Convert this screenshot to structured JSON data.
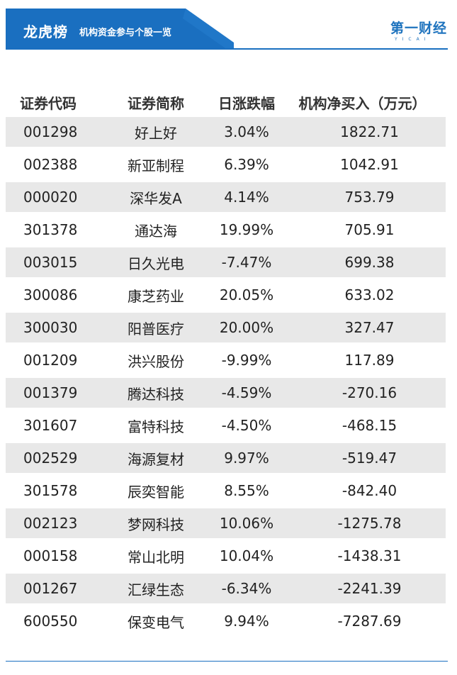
{
  "header": {
    "title": "龙虎榜",
    "subtitle": "机构资金参与个股一览",
    "logo_text": "第一财经",
    "logo_sub": "YICAI",
    "brand_color": "#1a6fc0"
  },
  "table": {
    "columns": [
      "证券代码",
      "证券简称",
      "日涨跌幅",
      "机构净买入（万元）"
    ],
    "rows": [
      {
        "code": "001298",
        "name": "好上好",
        "change": "3.04%",
        "net_buy": "1822.71"
      },
      {
        "code": "002388",
        "name": "新亚制程",
        "change": "6.39%",
        "net_buy": "1042.91"
      },
      {
        "code": "000020",
        "name": "深华发A",
        "change": "4.14%",
        "net_buy": "753.79"
      },
      {
        "code": "301378",
        "name": "通达海",
        "change": "19.99%",
        "net_buy": "705.91"
      },
      {
        "code": "003015",
        "name": "日久光电",
        "change": "-7.47%",
        "net_buy": "699.38"
      },
      {
        "code": "300086",
        "name": "康芝药业",
        "change": "20.05%",
        "net_buy": "633.02"
      },
      {
        "code": "300030",
        "name": "阳普医疗",
        "change": "20.00%",
        "net_buy": "327.47"
      },
      {
        "code": "001209",
        "name": "洪兴股份",
        "change": "-9.99%",
        "net_buy": "117.89"
      },
      {
        "code": "001379",
        "name": "腾达科技",
        "change": "-4.59%",
        "net_buy": "-270.16"
      },
      {
        "code": "301607",
        "name": "富特科技",
        "change": "-4.50%",
        "net_buy": "-468.15"
      },
      {
        "code": "002529",
        "name": "海源复材",
        "change": "9.97%",
        "net_buy": "-519.47"
      },
      {
        "code": "301578",
        "name": "辰奕智能",
        "change": "8.55%",
        "net_buy": "-842.40"
      },
      {
        "code": "002123",
        "name": "梦网科技",
        "change": "10.06%",
        "net_buy": "-1275.78"
      },
      {
        "code": "000158",
        "name": "常山北明",
        "change": "10.04%",
        "net_buy": "-1438.31"
      },
      {
        "code": "001267",
        "name": "汇绿生态",
        "change": "-6.34%",
        "net_buy": "-2241.39"
      },
      {
        "code": "600550",
        "name": "保变电气",
        "change": "9.94%",
        "net_buy": "-7287.69"
      }
    ]
  },
  "colors": {
    "positive": "#e8161a",
    "negative": "#1aa05a",
    "row_shade": "#e8e8e8"
  }
}
